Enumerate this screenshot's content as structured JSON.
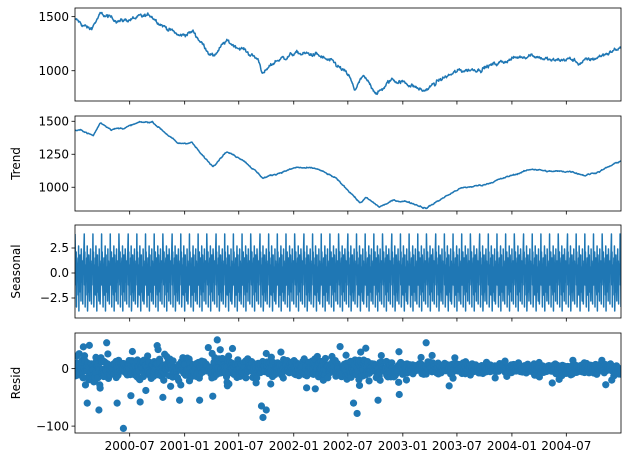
{
  "chart_data": [
    {
      "type": "line",
      "ylabel": "",
      "ylim": [
        720,
        1580
      ],
      "yticks": [
        {
          "v": 1000,
          "label": "1000"
        },
        {
          "v": 1500,
          "label": "1500"
        }
      ],
      "key_points": [
        [
          "2000-01-01",
          1470
        ],
        [
          "2000-02-20",
          1380
        ],
        [
          "2000-03-25",
          1520
        ],
        [
          "2000-06-01",
          1460
        ],
        [
          "2000-08-20",
          1500
        ],
        [
          "2000-09-10",
          1515
        ],
        [
          "2000-10-20",
          1420
        ],
        [
          "2000-12-15",
          1320
        ],
        [
          "2001-01-30",
          1360
        ],
        [
          "2001-03-01",
          1250
        ],
        [
          "2001-04-05",
          1130
        ],
        [
          "2001-05-20",
          1270
        ],
        [
          "2001-07-15",
          1200
        ],
        [
          "2001-09-05",
          1100
        ],
        [
          "2001-09-21",
          970
        ],
        [
          "2001-11-01",
          1090
        ],
        [
          "2002-01-05",
          1160
        ],
        [
          "2002-03-15",
          1150
        ],
        [
          "2002-05-20",
          1060
        ],
        [
          "2002-07-05",
          950
        ],
        [
          "2002-07-23",
          820
        ],
        [
          "2002-08-20",
          940
        ],
        [
          "2002-10-09",
          790
        ],
        [
          "2002-11-25",
          920
        ],
        [
          "2003-01-20",
          880
        ],
        [
          "2003-03-12",
          810
        ],
        [
          "2003-05-15",
          930
        ],
        [
          "2003-07-10",
          1000
        ],
        [
          "2003-09-20",
          1020
        ],
        [
          "2003-12-31",
          1110
        ],
        [
          "2004-03-05",
          1150
        ],
        [
          "2004-05-15",
          1090
        ],
        [
          "2004-07-15",
          1110
        ],
        [
          "2004-08-12",
          1070
        ],
        [
          "2004-10-10",
          1120
        ],
        [
          "2004-12-30",
          1215
        ]
      ],
      "noise": 22
    },
    {
      "type": "line",
      "ylabel": "Trend",
      "ylim": [
        820,
        1540
      ],
      "yticks": [
        {
          "v": 1000,
          "label": "1000"
        },
        {
          "v": 1250,
          "label": "1250"
        },
        {
          "v": 1500,
          "label": "1500"
        }
      ],
      "key_points": [
        [
          "2000-01-01",
          1430
        ],
        [
          "2000-01-25",
          1430
        ],
        [
          "2000-03-01",
          1390
        ],
        [
          "2000-03-25",
          1490
        ],
        [
          "2000-05-01",
          1440
        ],
        [
          "2000-06-15",
          1450
        ],
        [
          "2000-08-01",
          1490
        ],
        [
          "2000-09-15",
          1495
        ],
        [
          "2000-10-25",
          1420
        ],
        [
          "2000-12-10",
          1330
        ],
        [
          "2001-01-25",
          1340
        ],
        [
          "2001-02-25",
          1250
        ],
        [
          "2001-04-05",
          1160
        ],
        [
          "2001-05-20",
          1270
        ],
        [
          "2001-07-15",
          1210
        ],
        [
          "2001-09-20",
          1070
        ],
        [
          "2001-11-01",
          1100
        ],
        [
          "2002-01-10",
          1150
        ],
        [
          "2002-03-20",
          1140
        ],
        [
          "2002-05-20",
          1070
        ],
        [
          "2002-07-15",
          950
        ],
        [
          "2002-08-10",
          880
        ],
        [
          "2002-08-31",
          920
        ],
        [
          "2002-10-15",
          850
        ],
        [
          "2002-12-01",
          900
        ],
        [
          "2003-01-20",
          890
        ],
        [
          "2003-03-20",
          840
        ],
        [
          "2003-05-01",
          900
        ],
        [
          "2003-07-10",
          990
        ],
        [
          "2003-10-01",
          1020
        ],
        [
          "2004-01-01",
          1090
        ],
        [
          "2004-03-10",
          1140
        ],
        [
          "2004-05-01",
          1120
        ],
        [
          "2004-07-20",
          1120
        ],
        [
          "2004-09-01",
          1090
        ],
        [
          "2004-10-20",
          1120
        ],
        [
          "2004-12-30",
          1200
        ]
      ],
      "noise": 6
    },
    {
      "type": "line",
      "ylabel": "Seasonal",
      "ylim": [
        -4.5,
        4.8
      ],
      "yticks": [
        {
          "v": -2.5,
          "label": "−2.5"
        },
        {
          "v": 0,
          "label": "0.0"
        },
        {
          "v": 2.5,
          "label": "2.5"
        }
      ],
      "period_days": 21,
      "pattern": [
        3.9,
        -1.2,
        2.1,
        -3.4,
        0.8,
        -0.6,
        1.5,
        -2.2,
        2.7,
        -3.8,
        0.3,
        1.8,
        -1.9,
        0.6,
        -2.8,
        2.4,
        -0.9,
        1.2,
        -3.1,
        0.9,
        0.0
      ]
    },
    {
      "type": "scatter",
      "ylabel": "Resid",
      "ylim": [
        -112,
        62
      ],
      "yticks": [
        {
          "v": -100,
          "label": "−100"
        },
        {
          "v": 0,
          "label": "0"
        }
      ],
      "spread": [
        [
          "2000-01-01",
          28
        ],
        [
          "2001-01-01",
          24
        ],
        [
          "2001-10-01",
          18
        ],
        [
          "2002-08-01",
          22
        ],
        [
          "2003-03-01",
          16
        ],
        [
          "2004-01-01",
          10
        ],
        [
          "2004-12-31",
          12
        ]
      ],
      "outliers": [
        [
          "2000-02-10",
          -60
        ],
        [
          "2000-03-20",
          -72
        ],
        [
          "2000-04-15",
          45
        ],
        [
          "2000-05-20",
          -60
        ],
        [
          "2000-06-10",
          -104
        ],
        [
          "2000-08-05",
          -58
        ],
        [
          "2000-10-01",
          40
        ],
        [
          "2000-10-20",
          -50
        ],
        [
          "2000-12-15",
          -55
        ],
        [
          "2001-02-20",
          -55
        ],
        [
          "2001-04-05",
          -48
        ],
        [
          "2001-04-20",
          50
        ],
        [
          "2001-06-10",
          35
        ],
        [
          "2001-09-15",
          -65
        ],
        [
          "2001-09-20",
          -85
        ],
        [
          "2001-10-01",
          -72
        ],
        [
          "2002-07-20",
          -60
        ],
        [
          "2002-08-01",
          -78
        ],
        [
          "2002-10-10",
          -55
        ],
        [
          "2002-12-20",
          -45
        ],
        [
          "2003-03-20",
          45
        ],
        [
          "2003-06-05",
          -30
        ],
        [
          "2004-05-15",
          -25
        ],
        [
          "2004-11-10",
          -28
        ]
      ]
    }
  ],
  "x_axis": {
    "range": [
      "1999-12-31",
      "2004-12-31"
    ],
    "ticks": [
      {
        "date": "2000-07-01",
        "label": "2000-07"
      },
      {
        "date": "2001-01-01",
        "label": "2001-01"
      },
      {
        "date": "2001-07-01",
        "label": "2001-07"
      },
      {
        "date": "2002-01-01",
        "label": "2002-01"
      },
      {
        "date": "2002-07-01",
        "label": "2002-07"
      },
      {
        "date": "2003-01-01",
        "label": "2003-01"
      },
      {
        "date": "2003-07-01",
        "label": "2003-07"
      },
      {
        "date": "2004-01-01",
        "label": "2004-01"
      },
      {
        "date": "2004-07-01",
        "label": "2004-07"
      }
    ]
  },
  "colors": {
    "series": "#1f77b4",
    "axis": "#000000"
  }
}
